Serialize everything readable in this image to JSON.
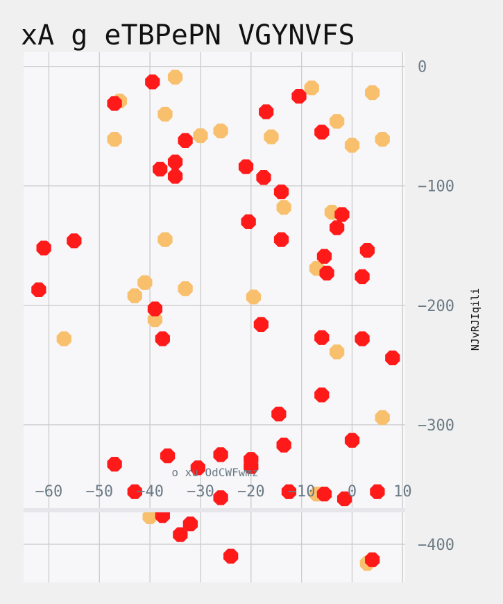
{
  "chart_data": {
    "type": "scatter",
    "title": "xA g  eTBPePN VGYNVFS",
    "xlabel": "o xu  OdCWFwmz",
    "ylabel": "NJvRJIqili",
    "xlim": [
      -65,
      10.5
    ],
    "ylim": [
      -432,
      12
    ],
    "x_ticks": [
      -60,
      -50,
      -40,
      -30,
      -20,
      -10,
      0,
      10
    ],
    "x_tick_labels": [
      "−60",
      "−50",
      "−40",
      "−30",
      "−20",
      "−10",
      "0",
      "10"
    ],
    "y_ticks": [
      0,
      -100,
      -200,
      -300,
      -400
    ],
    "y_tick_labels": [
      "0",
      "−100",
      "−200",
      "−300",
      "−400"
    ],
    "grid": true,
    "y_axis_position": "right",
    "colors": {
      "red": "#ff1a1a",
      "orange": "#f8c06c"
    },
    "series": [
      {
        "color": "#f8c06c",
        "points": [
          [
            -35,
            -9
          ],
          [
            -8,
            -18
          ],
          [
            4,
            -22
          ],
          [
            -46,
            -29
          ],
          [
            -37,
            -40
          ],
          [
            -3,
            -46
          ],
          [
            -26,
            -54
          ],
          [
            -30,
            -58
          ],
          [
            -16,
            -59
          ],
          [
            -47,
            -61
          ],
          [
            6,
            -61
          ],
          [
            0,
            -66
          ],
          [
            -13.5,
            -118
          ],
          [
            -4,
            -122
          ],
          [
            -37,
            -145
          ],
          [
            -7,
            -169
          ],
          [
            -41,
            -181
          ],
          [
            -33,
            -186
          ],
          [
            -43,
            -192
          ],
          [
            -19.5,
            -193
          ],
          [
            -39,
            -212
          ],
          [
            -57,
            -228
          ],
          [
            -3,
            -239
          ],
          [
            6,
            -294
          ],
          [
            -7,
            -358
          ],
          [
            -40,
            -377
          ],
          [
            3,
            -416
          ]
        ]
      },
      {
        "color": "#ff1a1a",
        "points": [
          [
            -39.5,
            -13
          ],
          [
            -47,
            -31
          ],
          [
            -10.5,
            -25
          ],
          [
            -17,
            -38
          ],
          [
            -6,
            -55
          ],
          [
            -33,
            -62
          ],
          [
            -35,
            -80
          ],
          [
            -38,
            -86
          ],
          [
            -35,
            -92
          ],
          [
            -21,
            -84
          ],
          [
            -17.5,
            -93
          ],
          [
            -14,
            -105
          ],
          [
            -20.5,
            -130
          ],
          [
            -2,
            -124
          ],
          [
            -3,
            -135
          ],
          [
            -14,
            -145
          ],
          [
            -55,
            -146
          ],
          [
            -61,
            -152
          ],
          [
            3,
            -154
          ],
          [
            -5.5,
            -159
          ],
          [
            -5,
            -173
          ],
          [
            2,
            -176
          ],
          [
            -62,
            -187
          ],
          [
            -39,
            -203
          ],
          [
            -37.5,
            -228
          ],
          [
            -18,
            -216
          ],
          [
            -6,
            -227
          ],
          [
            2,
            -228
          ],
          [
            8,
            -244
          ],
          [
            -6,
            -275
          ],
          [
            -14.5,
            -291
          ],
          [
            -13.5,
            -317
          ],
          [
            0,
            -313
          ],
          [
            -36.5,
            -326
          ],
          [
            -26,
            -325
          ],
          [
            -47,
            -333
          ],
          [
            -20,
            -329
          ],
          [
            -20,
            -335
          ],
          [
            -30.5,
            -336
          ],
          [
            -43,
            -356
          ],
          [
            -12.5,
            -356
          ],
          [
            -26,
            -361
          ],
          [
            -5.5,
            -358
          ],
          [
            -1.5,
            -362
          ],
          [
            5,
            -356
          ],
          [
            -37.5,
            -376
          ],
          [
            -32,
            -383
          ],
          [
            -34,
            -392
          ],
          [
            -24,
            -410
          ],
          [
            4,
            -413
          ]
        ]
      }
    ]
  }
}
